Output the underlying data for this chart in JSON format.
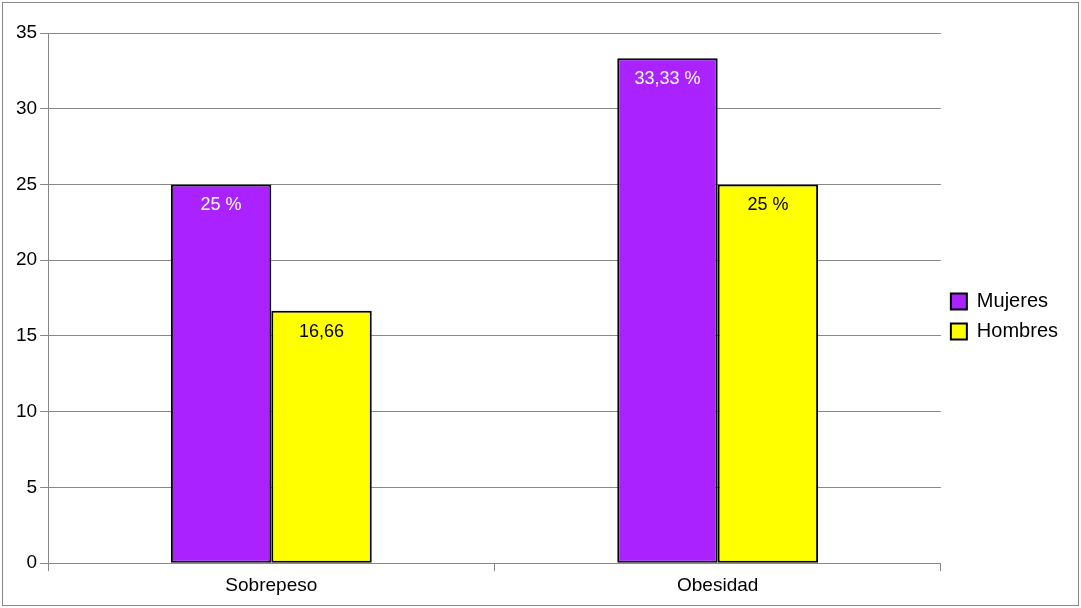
{
  "chart_data": {
    "type": "bar",
    "categories": [
      "Sobrepeso",
      "Obesidad"
    ],
    "series": [
      {
        "name": "Mujeres",
        "color": "#aa22ff",
        "values": [
          25,
          33.33
        ],
        "value_labels": [
          "25 %",
          "33,33 %"
        ]
      },
      {
        "name": "Hombres",
        "color": "#ffff00",
        "values": [
          16.66,
          25
        ],
        "value_labels": [
          "16,66",
          "25 %"
        ]
      }
    ],
    "ylim": [
      0,
      35
    ],
    "yticks": [
      0,
      5,
      10,
      15,
      20,
      25,
      30,
      35
    ],
    "grid": "y",
    "legend": "right"
  }
}
